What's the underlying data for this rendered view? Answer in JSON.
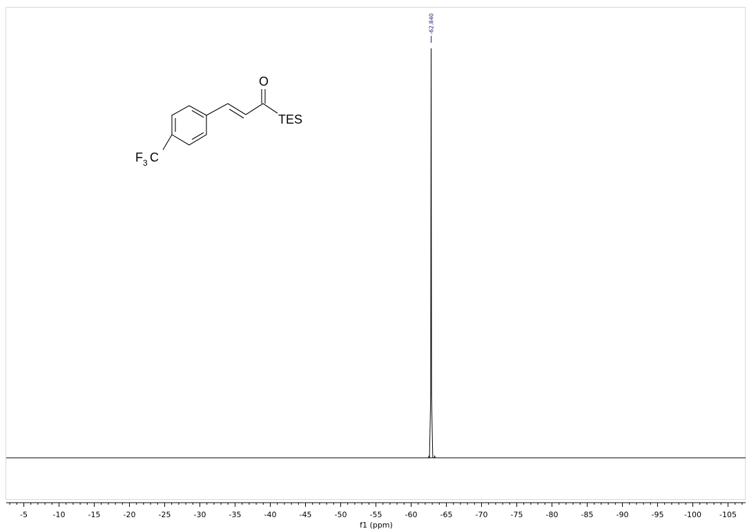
{
  "chart_data": {
    "type": "line",
    "title": "",
    "xlabel": "f1 (ppm)",
    "ylabel": "",
    "xlim": [
      -2.5,
      -107.5
    ],
    "x_reversed": true,
    "ticks": [
      "-5",
      "-10",
      "-15",
      "-20",
      "-25",
      "-30",
      "-35",
      "-40",
      "-45",
      "-50",
      "-55",
      "-60",
      "-65",
      "-70",
      "-75",
      "-80",
      "-85",
      "-90",
      "-95",
      "-100",
      "-105"
    ],
    "grid": false,
    "series": [
      {
        "peaks": [
          {
            "x": -62.84,
            "height": 1.0
          },
          {
            "x": -62.55,
            "height": 0.005
          },
          {
            "x": -63.35,
            "height": 0.004
          }
        ]
      }
    ],
    "peak_labels": [
      "-62.840"
    ],
    "structure": {
      "carbonyl_label": "O",
      "substituent_label": "TES",
      "cf3_label": "F",
      "cf3_subscript": "3",
      "cf3_carbon": "C"
    }
  }
}
